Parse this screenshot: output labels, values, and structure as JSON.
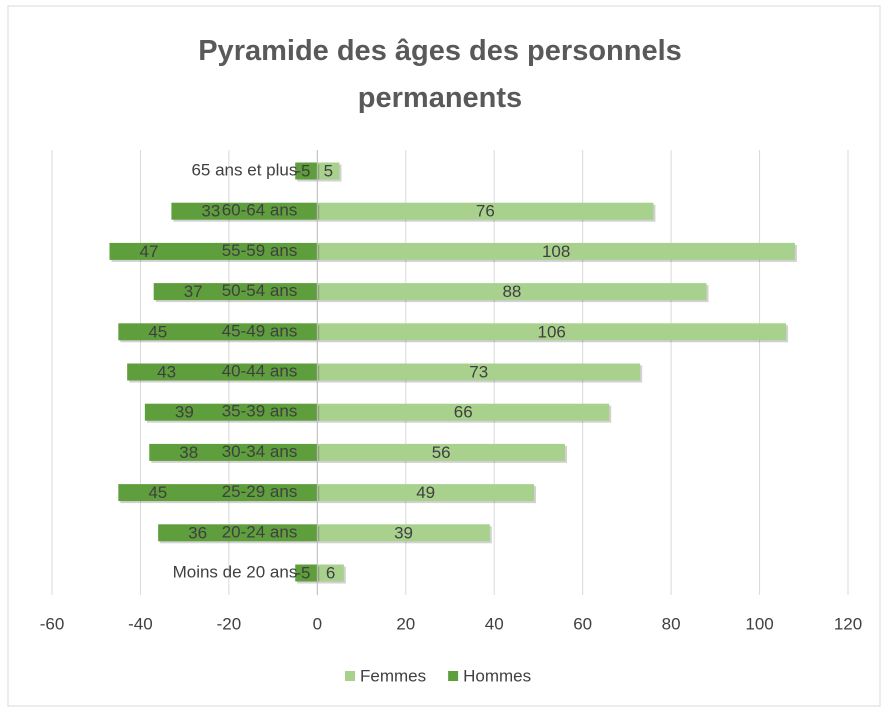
{
  "chart_data": {
    "type": "bar",
    "orientation": "horizontal",
    "title": "Pyramide des âges des personnels permanents",
    "categories": [
      "65 ans et plus",
      "60-64 ans",
      "55-59 ans",
      "50-54 ans",
      "45-49 ans",
      "40-44 ans",
      "35-39 ans",
      "30-34 ans",
      "25-29 ans",
      "20-24 ans",
      "Moins de 20 ans"
    ],
    "series": [
      {
        "name": "Femmes",
        "color": "#a9d18e",
        "values": [
          5,
          76,
          108,
          88,
          106,
          73,
          66,
          56,
          49,
          39,
          6
        ]
      },
      {
        "name": "Hommes",
        "color": "#5e9e3c",
        "values": [
          -5,
          -33,
          -47,
          -37,
          -45,
          -43,
          -39,
          -38,
          -45,
          -36,
          -5
        ],
        "value_labels": [
          "-5",
          "33",
          "47",
          "37",
          "45",
          "43",
          "39",
          "38",
          "45",
          "36",
          "-5"
        ]
      }
    ],
    "xlim": [
      -60,
      120
    ],
    "xticks": [
      -60,
      -40,
      -20,
      0,
      20,
      40,
      60,
      80,
      100,
      120
    ],
    "grid": true,
    "legend": "bottom"
  }
}
